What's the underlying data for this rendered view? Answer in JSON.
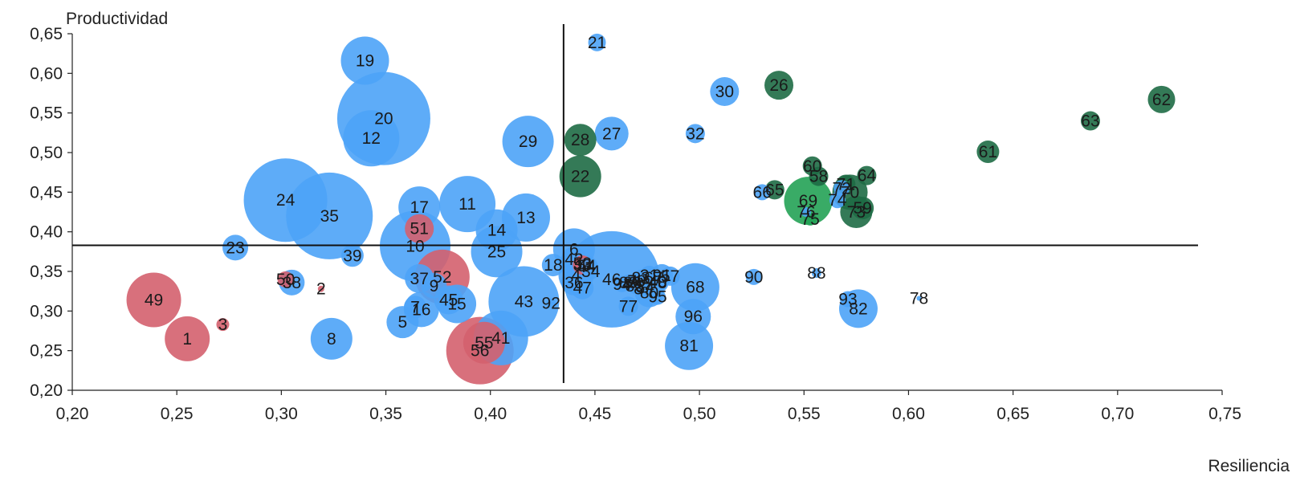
{
  "chart_data": {
    "type": "scatter",
    "variant": "bubble",
    "title": "",
    "xlabel": "Resiliencia",
    "ylabel": "Productividad",
    "xlim": [
      0.2,
      0.75
    ],
    "ylim": [
      0.2,
      0.65
    ],
    "x_ticks": [
      "0,20",
      "0,25",
      "0,30",
      "0,35",
      "0,40",
      "0,45",
      "0,50",
      "0,55",
      "0,60",
      "0,65",
      "0,70",
      "0,75"
    ],
    "y_ticks": [
      "0,20",
      "0,25",
      "0,30",
      "0,35",
      "0,40",
      "0,45",
      "0,50",
      "0,55",
      "0,60",
      "0,65"
    ],
    "reference_lines": {
      "vertical_x": 0.435,
      "horizontal_y": 0.383
    },
    "grid": false,
    "legend": "none",
    "colors": {
      "blue": "#4da3f7",
      "dark_green": "#1e6b45",
      "green": "#24a255",
      "red": "#d4606e",
      "axis": "#222222"
    },
    "bubbles": [
      {
        "label": "1",
        "x": 0.255,
        "y": 0.265,
        "size": 28,
        "color": "red"
      },
      {
        "label": "2",
        "x": 0.319,
        "y": 0.328,
        "size": 4,
        "color": "red"
      },
      {
        "label": "3",
        "x": 0.272,
        "y": 0.283,
        "size": 8,
        "color": "red"
      },
      {
        "label": "4",
        "x": 0.441,
        "y": 0.345,
        "size": 22,
        "color": "blue"
      },
      {
        "label": "5",
        "x": 0.358,
        "y": 0.286,
        "size": 20,
        "color": "blue"
      },
      {
        "label": "6",
        "x": 0.44,
        "y": 0.378,
        "size": 26,
        "color": "blue"
      },
      {
        "label": "7",
        "x": 0.364,
        "y": 0.305,
        "size": 14,
        "color": "blue"
      },
      {
        "label": "8",
        "x": 0.324,
        "y": 0.265,
        "size": 26,
        "color": "blue"
      },
      {
        "label": "9",
        "x": 0.373,
        "y": 0.332,
        "size": 16,
        "color": "blue"
      },
      {
        "label": "10",
        "x": 0.364,
        "y": 0.382,
        "size": 44,
        "color": "blue"
      },
      {
        "label": "11",
        "x": 0.389,
        "y": 0.435,
        "size": 35,
        "color": "blue"
      },
      {
        "label": "12",
        "x": 0.343,
        "y": 0.518,
        "size": 35,
        "color": "blue"
      },
      {
        "label": "13",
        "x": 0.417,
        "y": 0.418,
        "size": 30,
        "color": "blue"
      },
      {
        "label": "14",
        "x": 0.403,
        "y": 0.402,
        "size": 26,
        "color": "blue"
      },
      {
        "label": "15",
        "x": 0.384,
        "y": 0.309,
        "size": 24,
        "color": "blue"
      },
      {
        "label": "16",
        "x": 0.367,
        "y": 0.302,
        "size": 22,
        "color": "blue"
      },
      {
        "label": "17",
        "x": 0.366,
        "y": 0.431,
        "size": 26,
        "color": "blue"
      },
      {
        "label": "18",
        "x": 0.43,
        "y": 0.358,
        "size": 14,
        "color": "blue"
      },
      {
        "label": "19",
        "x": 0.34,
        "y": 0.616,
        "size": 30,
        "color": "blue"
      },
      {
        "label": "20",
        "x": 0.349,
        "y": 0.543,
        "size": 58,
        "color": "blue"
      },
      {
        "label": "21",
        "x": 0.451,
        "y": 0.639,
        "size": 11,
        "color": "blue"
      },
      {
        "label": "22",
        "x": 0.443,
        "y": 0.47,
        "size": 26,
        "color": "dark_green"
      },
      {
        "label": "23",
        "x": 0.278,
        "y": 0.38,
        "size": 16,
        "color": "blue"
      },
      {
        "label": "24",
        "x": 0.302,
        "y": 0.44,
        "size": 52,
        "color": "blue"
      },
      {
        "label": "25",
        "x": 0.403,
        "y": 0.375,
        "size": 32,
        "color": "blue"
      },
      {
        "label": "26",
        "x": 0.538,
        "y": 0.585,
        "size": 18,
        "color": "dark_green"
      },
      {
        "label": "27",
        "x": 0.458,
        "y": 0.524,
        "size": 21,
        "color": "blue"
      },
      {
        "label": "28",
        "x": 0.443,
        "y": 0.516,
        "size": 20,
        "color": "dark_green"
      },
      {
        "label": "29",
        "x": 0.418,
        "y": 0.514,
        "size": 32,
        "color": "blue"
      },
      {
        "label": "30",
        "x": 0.512,
        "y": 0.577,
        "size": 18,
        "color": "blue"
      },
      {
        "label": "31",
        "x": 0.476,
        "y": 0.345,
        "size": 12,
        "color": "blue"
      },
      {
        "label": "32",
        "x": 0.498,
        "y": 0.524,
        "size": 12,
        "color": "blue"
      },
      {
        "label": "33",
        "x": 0.444,
        "y": 0.358,
        "size": 12,
        "color": "red"
      },
      {
        "label": "34",
        "x": 0.448,
        "y": 0.35,
        "size": 10,
        "color": "blue"
      },
      {
        "label": "35",
        "x": 0.323,
        "y": 0.42,
        "size": 54,
        "color": "blue"
      },
      {
        "label": "36",
        "x": 0.44,
        "y": 0.336,
        "size": 16,
        "color": "blue"
      },
      {
        "label": "37",
        "x": 0.366,
        "y": 0.341,
        "size": 18,
        "color": "blue"
      },
      {
        "label": "38",
        "x": 0.305,
        "y": 0.336,
        "size": 16,
        "color": "blue"
      },
      {
        "label": "39",
        "x": 0.334,
        "y": 0.37,
        "size": 14,
        "color": "blue"
      },
      {
        "label": "40",
        "x": 0.48,
        "y": 0.337,
        "size": 14,
        "color": "blue"
      },
      {
        "label": "41",
        "x": 0.405,
        "y": 0.266,
        "size": 34,
        "color": "blue"
      },
      {
        "label": "42",
        "x": 0.44,
        "y": 0.365,
        "size": 16,
        "color": "blue"
      },
      {
        "label": "43",
        "x": 0.416,
        "y": 0.312,
        "size": 44,
        "color": "blue"
      },
      {
        "label": "44",
        "x": 0.446,
        "y": 0.356,
        "size": 14,
        "color": "blue"
      },
      {
        "label": "45",
        "x": 0.38,
        "y": 0.314,
        "size": 18,
        "color": "blue"
      },
      {
        "label": "46",
        "x": 0.458,
        "y": 0.34,
        "size": 60,
        "color": "blue"
      },
      {
        "label": "47",
        "x": 0.444,
        "y": 0.329,
        "size": 14,
        "color": "blue"
      },
      {
        "label": "48",
        "x": 0.48,
        "y": 0.336,
        "size": 12,
        "color": "blue"
      },
      {
        "label": "49",
        "x": 0.239,
        "y": 0.314,
        "size": 34,
        "color": "red"
      },
      {
        "label": "50",
        "x": 0.302,
        "y": 0.34,
        "size": 10,
        "color": "red"
      },
      {
        "label": "51",
        "x": 0.366,
        "y": 0.404,
        "size": 18,
        "color": "red"
      },
      {
        "label": "52",
        "x": 0.377,
        "y": 0.343,
        "size": 34,
        "color": "red"
      },
      {
        "label": "53",
        "x": 0.444,
        "y": 0.36,
        "size": 10,
        "color": "red"
      },
      {
        "label": "54",
        "x": 0.446,
        "y": 0.357,
        "size": 10,
        "color": "blue"
      },
      {
        "label": "55",
        "x": 0.397,
        "y": 0.26,
        "size": 26,
        "color": "red"
      },
      {
        "label": "56",
        "x": 0.395,
        "y": 0.25,
        "size": 42,
        "color": "red"
      },
      {
        "label": "57",
        "x": 0.486,
        "y": 0.344,
        "size": 12,
        "color": "blue"
      },
      {
        "label": "58",
        "x": 0.557,
        "y": 0.47,
        "size": 12,
        "color": "dark_green"
      },
      {
        "label": "59",
        "x": 0.578,
        "y": 0.43,
        "size": 14,
        "color": "dark_green"
      },
      {
        "label": "60",
        "x": 0.554,
        "y": 0.483,
        "size": 12,
        "color": "dark_green"
      },
      {
        "label": "61",
        "x": 0.638,
        "y": 0.501,
        "size": 14,
        "color": "dark_green"
      },
      {
        "label": "62",
        "x": 0.721,
        "y": 0.567,
        "size": 17,
        "color": "dark_green"
      },
      {
        "label": "63",
        "x": 0.687,
        "y": 0.54,
        "size": 12,
        "color": "dark_green"
      },
      {
        "label": "64",
        "x": 0.58,
        "y": 0.471,
        "size": 12,
        "color": "dark_green"
      },
      {
        "label": "65",
        "x": 0.536,
        "y": 0.453,
        "size": 12,
        "color": "dark_green"
      },
      {
        "label": "66",
        "x": 0.53,
        "y": 0.45,
        "size": 10,
        "color": "blue"
      },
      {
        "label": "67",
        "x": 0.478,
        "y": 0.342,
        "size": 12,
        "color": "blue"
      },
      {
        "label": "68",
        "x": 0.498,
        "y": 0.33,
        "size": 30,
        "color": "blue"
      },
      {
        "label": "69",
        "x": 0.552,
        "y": 0.439,
        "size": 30,
        "color": "green"
      },
      {
        "label": "70",
        "x": 0.572,
        "y": 0.45,
        "size": 22,
        "color": "dark_green"
      },
      {
        "label": "71",
        "x": 0.57,
        "y": 0.46,
        "size": 12,
        "color": "dark_green"
      },
      {
        "label": "72",
        "x": 0.568,
        "y": 0.455,
        "size": 10,
        "color": "blue"
      },
      {
        "label": "73",
        "x": 0.575,
        "y": 0.425,
        "size": 20,
        "color": "dark_green"
      },
      {
        "label": "74",
        "x": 0.566,
        "y": 0.44,
        "size": 10,
        "color": "blue"
      },
      {
        "label": "75",
        "x": 0.553,
        "y": 0.416,
        "size": 8,
        "color": "green"
      },
      {
        "label": "76",
        "x": 0.551,
        "y": 0.425,
        "size": 6,
        "color": "blue"
      },
      {
        "label": "77",
        "x": 0.466,
        "y": 0.306,
        "size": 12,
        "color": "blue"
      },
      {
        "label": "78",
        "x": 0.605,
        "y": 0.316,
        "size": 3,
        "color": "blue"
      },
      {
        "label": "79",
        "x": 0.47,
        "y": 0.338,
        "size": 10,
        "color": "blue"
      },
      {
        "label": "80",
        "x": 0.476,
        "y": 0.323,
        "size": 18,
        "color": "blue"
      },
      {
        "label": "81",
        "x": 0.495,
        "y": 0.256,
        "size": 30,
        "color": "blue"
      },
      {
        "label": "82",
        "x": 0.576,
        "y": 0.303,
        "size": 24,
        "color": "blue"
      },
      {
        "label": "83",
        "x": 0.472,
        "y": 0.342,
        "size": 10,
        "color": "blue"
      },
      {
        "label": "84",
        "x": 0.474,
        "y": 0.33,
        "size": 10,
        "color": "blue"
      },
      {
        "label": "85",
        "x": 0.469,
        "y": 0.332,
        "size": 10,
        "color": "blue"
      },
      {
        "label": "86",
        "x": 0.468,
        "y": 0.336,
        "size": 10,
        "color": "blue"
      },
      {
        "label": "87",
        "x": 0.473,
        "y": 0.328,
        "size": 10,
        "color": "blue"
      },
      {
        "label": "88",
        "x": 0.556,
        "y": 0.348,
        "size": 6,
        "color": "blue"
      },
      {
        "label": "89",
        "x": 0.466,
        "y": 0.336,
        "size": 10,
        "color": "blue"
      },
      {
        "label": "90",
        "x": 0.526,
        "y": 0.343,
        "size": 10,
        "color": "blue"
      },
      {
        "label": "91",
        "x": 0.482,
        "y": 0.345,
        "size": 14,
        "color": "blue"
      },
      {
        "label": "92",
        "x": 0.429,
        "y": 0.31,
        "size": 6,
        "color": "blue"
      },
      {
        "label": "93",
        "x": 0.571,
        "y": 0.315,
        "size": 10,
        "color": "blue"
      },
      {
        "label": "94",
        "x": 0.463,
        "y": 0.334,
        "size": 10,
        "color": "blue"
      },
      {
        "label": "95",
        "x": 0.48,
        "y": 0.318,
        "size": 10,
        "color": "blue"
      },
      {
        "label": "96",
        "x": 0.497,
        "y": 0.293,
        "size": 22,
        "color": "blue"
      }
    ]
  }
}
